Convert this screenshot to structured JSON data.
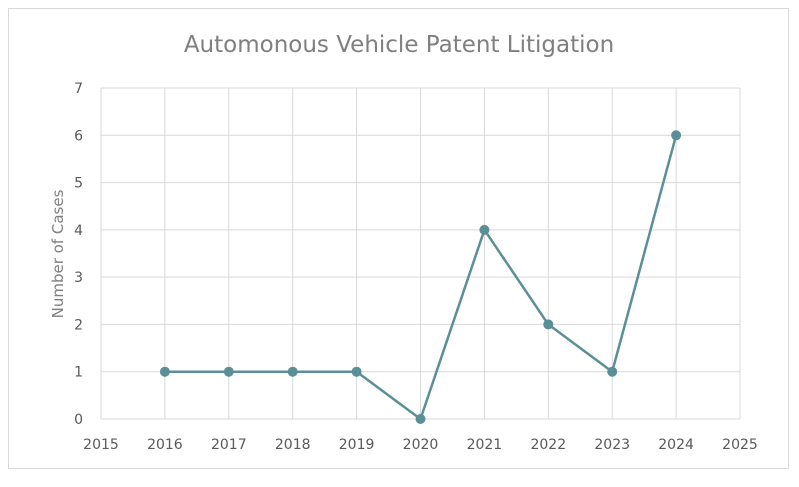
{
  "chart_data": {
    "type": "line",
    "title": "Automonous Vehicle Patent Litigation",
    "xlabel": "",
    "ylabel": "Number of Cases",
    "xlim": [
      2015,
      2025
    ],
    "ylim": [
      0,
      7
    ],
    "x_ticks": [
      2015,
      2016,
      2017,
      2018,
      2019,
      2020,
      2021,
      2022,
      2023,
      2024,
      2025
    ],
    "y_ticks": [
      0,
      1,
      2,
      3,
      4,
      5,
      6,
      7
    ],
    "grid": true,
    "legend": "none",
    "series": [
      {
        "x": [
          2016,
          2017,
          2018,
          2019,
          2020,
          2021,
          2022,
          2023,
          2024
        ],
        "y": [
          1,
          1,
          1,
          1,
          0,
          4,
          2,
          1,
          6
        ],
        "color": "#5b8f98",
        "marker": "circle"
      }
    ],
    "colors": {
      "gridline": "#d9d9d9",
      "line": "#5b8f98",
      "text": "#595959",
      "title": "#7f7f7f"
    }
  }
}
